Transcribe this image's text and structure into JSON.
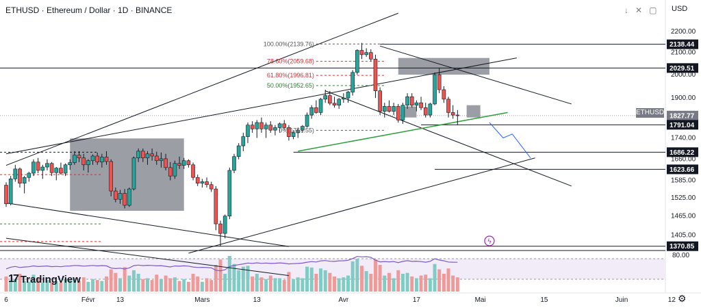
{
  "header": {
    "title": "ETHUSD · Ethereum / Dollar · 1D · BINANCE",
    "currency": "USD",
    "icons": [
      "arrow-down-icon",
      "close-icon",
      "fullscreen-icon"
    ]
  },
  "branding": {
    "logo_text": "TradingView"
  },
  "symbol_badge": "ETHUSD",
  "chart_data": {
    "type": "candlestick",
    "symbol": "ETHUSD",
    "y_axis": {
      "ticks": [
        2200.0,
        2100.0,
        2000.0,
        1900.0,
        1740.0,
        1660.0,
        1585.0,
        1525.0,
        1465.0,
        1405.0
      ],
      "price_labels": [
        {
          "value": 2138.44,
          "label": "2138.44",
          "style": "dark"
        },
        {
          "value": 2029.51,
          "label": "2029.51",
          "style": "dark"
        },
        {
          "value": 1827.77,
          "label": "1827.77",
          "style": "grey"
        },
        {
          "value": 1791.04,
          "label": "1791.04",
          "style": "dark"
        },
        {
          "value": 1686.22,
          "label": "1686.22",
          "style": "dark"
        },
        {
          "value": 1623.66,
          "label": "1623.66",
          "style": "dark"
        },
        {
          "value": 1370.85,
          "label": "1370.85",
          "style": "dark"
        }
      ],
      "log_scale": true,
      "ylim": [
        1360,
        2260
      ]
    },
    "x_axis": {
      "ticks": [
        {
          "label": "6",
          "index": 0
        },
        {
          "label": "Févr",
          "index": 18
        },
        {
          "label": "13",
          "index": 25
        },
        {
          "label": "Mars",
          "index": 43
        },
        {
          "label": "13",
          "index": 55
        },
        {
          "label": "Avr",
          "index": 74
        },
        {
          "label": "17",
          "index": 90
        },
        {
          "label": "Mai",
          "index": 104
        },
        {
          "label": "15",
          "index": 118
        },
        {
          "label": "Juin",
          "index": 135
        },
        {
          "label": "12",
          "index": 146
        }
      ]
    },
    "fib_levels": [
      {
        "label": "100.00%(2139.76)",
        "value": 2139.76,
        "color": "#555555"
      },
      {
        "label": "78.60%(2059.68)",
        "value": 2059.68,
        "color": "#d32f2f"
      },
      {
        "label": "61.80%(1996.81)",
        "value": 1996.81,
        "color": "#d32f2f"
      },
      {
        "label": "50.00%(1952.65)",
        "value": 1952.65,
        "color": "#2e7d32"
      },
      {
        "label": "0%(1769.55)",
        "value": 1769.55,
        "color": "#555555"
      }
    ],
    "volume_indicator": {
      "label": "80.00"
    },
    "candles": [
      [
        1568,
        1578,
        1495,
        1505
      ],
      [
        1505,
        1600,
        1500,
        1590
      ],
      [
        1590,
        1640,
        1580,
        1625
      ],
      [
        1625,
        1630,
        1560,
        1575
      ],
      [
        1575,
        1600,
        1540,
        1595
      ],
      [
        1595,
        1615,
        1580,
        1610
      ],
      [
        1610,
        1660,
        1600,
        1650
      ],
      [
        1650,
        1665,
        1610,
        1620
      ],
      [
        1620,
        1640,
        1590,
        1632
      ],
      [
        1632,
        1660,
        1620,
        1645
      ],
      [
        1645,
        1650,
        1600,
        1612
      ],
      [
        1612,
        1632,
        1585,
        1628
      ],
      [
        1628,
        1648,
        1605,
        1610
      ],
      [
        1610,
        1645,
        1600,
        1640
      ],
      [
        1640,
        1660,
        1622,
        1648
      ],
      [
        1648,
        1690,
        1640,
        1675
      ],
      [
        1675,
        1690,
        1650,
        1665
      ],
      [
        1665,
        1680,
        1620,
        1640
      ],
      [
        1640,
        1660,
        1612,
        1655
      ],
      [
        1655,
        1678,
        1640,
        1672
      ],
      [
        1672,
        1685,
        1640,
        1650
      ],
      [
        1650,
        1680,
        1630,
        1668
      ],
      [
        1668,
        1690,
        1640,
        1652
      ],
      [
        1652,
        1660,
        1530,
        1548
      ],
      [
        1548,
        1560,
        1510,
        1520
      ],
      [
        1520,
        1552,
        1505,
        1540
      ],
      [
        1540,
        1555,
        1490,
        1500
      ],
      [
        1500,
        1560,
        1495,
        1555
      ],
      [
        1555,
        1670,
        1550,
        1665
      ],
      [
        1665,
        1700,
        1650,
        1690
      ],
      [
        1690,
        1700,
        1650,
        1665
      ],
      [
        1665,
        1690,
        1640,
        1680
      ],
      [
        1680,
        1700,
        1655,
        1672
      ],
      [
        1672,
        1688,
        1640,
        1655
      ],
      [
        1655,
        1685,
        1630,
        1662
      ],
      [
        1662,
        1680,
        1620,
        1630
      ],
      [
        1630,
        1650,
        1585,
        1600
      ],
      [
        1600,
        1655,
        1590,
        1645
      ],
      [
        1645,
        1670,
        1625,
        1638
      ],
      [
        1638,
        1665,
        1625,
        1655
      ],
      [
        1655,
        1660,
        1630,
        1640
      ],
      [
        1640,
        1648,
        1585,
        1595
      ],
      [
        1595,
        1605,
        1565,
        1575
      ],
      [
        1575,
        1590,
        1560,
        1580
      ],
      [
        1580,
        1595,
        1560,
        1570
      ],
      [
        1570,
        1580,
        1545,
        1555
      ],
      [
        1555,
        1565,
        1420,
        1440
      ],
      [
        1440,
        1450,
        1370,
        1410
      ],
      [
        1410,
        1470,
        1395,
        1465
      ],
      [
        1465,
        1630,
        1455,
        1620
      ],
      [
        1620,
        1680,
        1610,
        1670
      ],
      [
        1670,
        1720,
        1660,
        1710
      ],
      [
        1710,
        1760,
        1690,
        1745
      ],
      [
        1745,
        1800,
        1720,
        1790
      ],
      [
        1790,
        1805,
        1760,
        1775
      ],
      [
        1775,
        1810,
        1740,
        1800
      ],
      [
        1800,
        1820,
        1760,
        1775
      ],
      [
        1775,
        1800,
        1740,
        1790
      ],
      [
        1790,
        1805,
        1760,
        1770
      ],
      [
        1770,
        1790,
        1750,
        1780
      ],
      [
        1780,
        1800,
        1760,
        1795
      ],
      [
        1795,
        1810,
        1770,
        1780
      ],
      [
        1780,
        1790,
        1730,
        1745
      ],
      [
        1745,
        1770,
        1735,
        1760
      ],
      [
        1760,
        1780,
        1740,
        1770
      ],
      [
        1770,
        1790,
        1760,
        1785
      ],
      [
        1785,
        1840,
        1780,
        1830
      ],
      [
        1830,
        1870,
        1815,
        1860
      ],
      [
        1860,
        1890,
        1835,
        1840
      ],
      [
        1840,
        1900,
        1830,
        1895
      ],
      [
        1895,
        1935,
        1880,
        1910
      ],
      [
        1910,
        1930,
        1870,
        1878
      ],
      [
        1878,
        1905,
        1860,
        1870
      ],
      [
        1870,
        1900,
        1855,
        1895
      ],
      [
        1895,
        1920,
        1880,
        1900
      ],
      [
        1900,
        1930,
        1880,
        1925
      ],
      [
        1925,
        2020,
        1910,
        2010
      ],
      [
        2010,
        2115,
        2000,
        2110
      ],
      [
        2110,
        2145,
        2070,
        2090
      ],
      [
        2090,
        2120,
        2080,
        2100
      ],
      [
        2100,
        2115,
        2060,
        2070
      ],
      [
        2070,
        2090,
        1900,
        1930
      ],
      [
        1930,
        1945,
        1830,
        1845
      ],
      [
        1845,
        1880,
        1820,
        1865
      ],
      [
        1865,
        1890,
        1840,
        1845
      ],
      [
        1845,
        1880,
        1830,
        1865
      ],
      [
        1865,
        1875,
        1800,
        1810
      ],
      [
        1810,
        1880,
        1795,
        1870
      ],
      [
        1870,
        1920,
        1855,
        1905
      ],
      [
        1905,
        1920,
        1860,
        1870
      ],
      [
        1870,
        1890,
        1845,
        1880
      ],
      [
        1880,
        1905,
        1850,
        1860
      ],
      [
        1860,
        1880,
        1820,
        1830
      ],
      [
        1830,
        1880,
        1820,
        1875
      ],
      [
        1875,
        2010,
        1870,
        2000
      ],
      [
        2000,
        2030,
        1920,
        1935
      ],
      [
        1935,
        1950,
        1880,
        1895
      ],
      [
        1895,
        1905,
        1820,
        1840
      ],
      [
        1840,
        1870,
        1815,
        1830
      ],
      [
        1830,
        1850,
        1790,
        1827.77
      ]
    ],
    "volume": [
      34,
      25,
      28,
      40,
      24,
      22,
      38,
      30,
      20,
      26,
      22,
      24,
      20,
      28,
      25,
      30,
      24,
      32,
      22,
      28,
      26,
      24,
      34,
      50,
      42,
      30,
      55,
      36,
      48,
      40,
      28,
      30,
      26,
      38,
      28,
      36,
      30,
      32,
      24,
      28,
      22,
      40,
      34,
      22,
      30,
      26,
      60,
      72,
      40,
      80,
      62,
      48,
      56,
      58,
      34,
      40,
      32,
      28,
      36,
      30,
      30,
      26,
      44,
      28,
      32,
      30,
      56,
      54,
      40,
      52,
      48,
      42,
      34,
      30,
      32,
      36,
      68,
      74,
      58,
      46,
      40,
      72,
      60,
      36,
      42,
      30,
      48,
      40,
      42,
      34,
      30,
      36,
      38,
      30,
      62,
      50,
      40,
      52,
      36,
      32
    ],
    "grid": false,
    "legend": "none"
  }
}
